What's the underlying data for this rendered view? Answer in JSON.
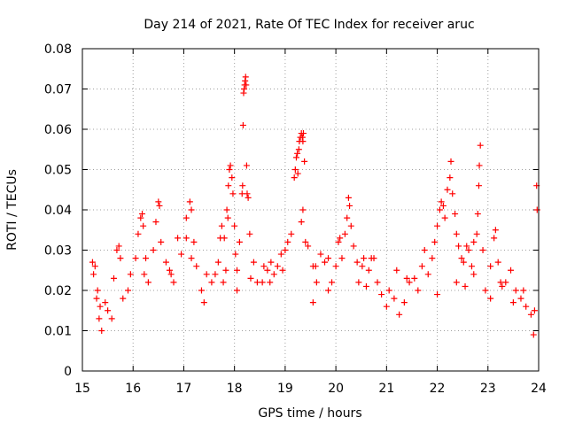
{
  "chart_data": {
    "type": "scatter",
    "title": "Day 214 of 2021, Rate Of TEC Index for receiver aruc",
    "xlabel": "GPS time / hours",
    "ylabel": "ROTI / TECUs",
    "xlim": [
      15,
      24
    ],
    "ylim": [
      0,
      0.08
    ],
    "x_ticks": [
      "15",
      "16",
      "17",
      "18",
      "19",
      "20",
      "21",
      "22",
      "23",
      "24"
    ],
    "y_ticks": [
      "0",
      "0.01",
      "0.02",
      "0.03",
      "0.04",
      "0.05",
      "0.06",
      "0.07",
      "0.08"
    ],
    "grid": true,
    "marker": "+",
    "color": "#ff0000",
    "series": [
      {
        "points": [
          [
            15.2,
            0.027
          ],
          [
            15.22,
            0.024
          ],
          [
            15.25,
            0.026
          ],
          [
            15.28,
            0.018
          ],
          [
            15.3,
            0.02
          ],
          [
            15.33,
            0.013
          ],
          [
            15.35,
            0.016
          ],
          [
            15.38,
            0.01
          ],
          [
            15.45,
            0.017
          ],
          [
            15.5,
            0.015
          ],
          [
            15.58,
            0.013
          ],
          [
            15.62,
            0.023
          ],
          [
            15.68,
            0.03
          ],
          [
            15.72,
            0.031
          ],
          [
            15.75,
            0.028
          ],
          [
            15.8,
            0.018
          ],
          [
            15.9,
            0.02
          ],
          [
            15.95,
            0.024
          ],
          [
            16.05,
            0.028
          ],
          [
            16.1,
            0.034
          ],
          [
            16.15,
            0.038
          ],
          [
            16.18,
            0.039
          ],
          [
            16.2,
            0.036
          ],
          [
            16.25,
            0.028
          ],
          [
            16.3,
            0.022
          ],
          [
            16.4,
            0.03
          ],
          [
            16.45,
            0.037
          ],
          [
            16.5,
            0.042
          ],
          [
            16.52,
            0.041
          ],
          [
            16.55,
            0.032
          ],
          [
            16.65,
            0.027
          ],
          [
            16.72,
            0.025
          ],
          [
            16.8,
            0.022
          ],
          [
            16.88,
            0.033
          ],
          [
            16.95,
            0.029
          ],
          [
            17.05,
            0.038
          ],
          [
            17.12,
            0.042
          ],
          [
            17.15,
            0.04
          ],
          [
            17.2,
            0.032
          ],
          [
            17.25,
            0.026
          ],
          [
            17.35,
            0.02
          ],
          [
            17.45,
            0.024
          ],
          [
            17.55,
            0.022
          ],
          [
            17.62,
            0.024
          ],
          [
            17.68,
            0.027
          ],
          [
            17.72,
            0.033
          ],
          [
            17.75,
            0.036
          ],
          [
            17.8,
            0.033
          ],
          [
            17.85,
            0.04
          ],
          [
            17.87,
            0.038
          ],
          [
            17.88,
            0.046
          ],
          [
            17.9,
            0.05
          ],
          [
            17.92,
            0.051
          ],
          [
            17.95,
            0.048
          ],
          [
            17.97,
            0.044
          ],
          [
            18.0,
            0.036
          ],
          [
            18.02,
            0.029
          ],
          [
            18.05,
            0.025
          ],
          [
            18.1,
            0.032
          ],
          [
            18.15,
            0.044
          ],
          [
            18.16,
            0.046
          ],
          [
            18.17,
            0.061
          ],
          [
            18.18,
            0.069
          ],
          [
            18.19,
            0.07
          ],
          [
            18.2,
            0.071
          ],
          [
            18.21,
            0.072
          ],
          [
            18.22,
            0.073
          ],
          [
            18.23,
            0.071
          ],
          [
            18.24,
            0.051
          ],
          [
            18.25,
            0.044
          ],
          [
            18.27,
            0.043
          ],
          [
            18.3,
            0.034
          ],
          [
            18.38,
            0.027
          ],
          [
            18.45,
            0.022
          ],
          [
            18.55,
            0.022
          ],
          [
            18.65,
            0.025
          ],
          [
            18.72,
            0.027
          ],
          [
            18.78,
            0.024
          ],
          [
            18.85,
            0.026
          ],
          [
            18.92,
            0.029
          ],
          [
            19.0,
            0.03
          ],
          [
            19.05,
            0.032
          ],
          [
            19.12,
            0.034
          ],
          [
            19.18,
            0.048
          ],
          [
            19.2,
            0.05
          ],
          [
            19.22,
            0.053
          ],
          [
            19.24,
            0.054
          ],
          [
            19.25,
            0.049
          ],
          [
            19.27,
            0.055
          ],
          [
            19.28,
            0.057
          ],
          [
            19.3,
            0.058
          ],
          [
            19.32,
            0.059
          ],
          [
            19.34,
            0.058
          ],
          [
            19.35,
            0.057
          ],
          [
            19.36,
            0.059
          ],
          [
            19.38,
            0.052
          ],
          [
            19.32,
            0.037
          ],
          [
            19.35,
            0.04
          ],
          [
            19.4,
            0.032
          ],
          [
            19.45,
            0.031
          ],
          [
            19.55,
            0.026
          ],
          [
            19.62,
            0.022
          ],
          [
            19.7,
            0.029
          ],
          [
            19.78,
            0.027
          ],
          [
            19.85,
            0.028
          ],
          [
            19.92,
            0.022
          ],
          [
            20.0,
            0.026
          ],
          [
            20.05,
            0.032
          ],
          [
            20.08,
            0.033
          ],
          [
            20.12,
            0.028
          ],
          [
            20.18,
            0.034
          ],
          [
            20.22,
            0.038
          ],
          [
            20.25,
            0.043
          ],
          [
            20.27,
            0.041
          ],
          [
            20.3,
            0.036
          ],
          [
            20.35,
            0.031
          ],
          [
            20.42,
            0.027
          ],
          [
            20.52,
            0.026
          ],
          [
            20.6,
            0.021
          ],
          [
            20.7,
            0.028
          ],
          [
            20.75,
            0.028
          ],
          [
            20.82,
            0.022
          ],
          [
            20.9,
            0.019
          ],
          [
            21.0,
            0.016
          ],
          [
            21.05,
            0.02
          ],
          [
            21.15,
            0.018
          ],
          [
            21.25,
            0.014
          ],
          [
            21.35,
            0.017
          ],
          [
            21.45,
            0.022
          ],
          [
            21.55,
            0.023
          ],
          [
            21.62,
            0.02
          ],
          [
            21.7,
            0.026
          ],
          [
            21.75,
            0.03
          ],
          [
            21.82,
            0.024
          ],
          [
            21.9,
            0.028
          ],
          [
            21.95,
            0.032
          ],
          [
            22.0,
            0.036
          ],
          [
            22.05,
            0.04
          ],
          [
            22.08,
            0.042
          ],
          [
            22.12,
            0.041
          ],
          [
            22.15,
            0.038
          ],
          [
            22.2,
            0.045
          ],
          [
            22.25,
            0.048
          ],
          [
            22.27,
            0.052
          ],
          [
            22.3,
            0.044
          ],
          [
            22.35,
            0.039
          ],
          [
            22.38,
            0.034
          ],
          [
            22.42,
            0.031
          ],
          [
            22.48,
            0.028
          ],
          [
            22.52,
            0.027
          ],
          [
            22.58,
            0.031
          ],
          [
            22.62,
            0.03
          ],
          [
            22.68,
            0.026
          ],
          [
            22.72,
            0.032
          ],
          [
            22.78,
            0.034
          ],
          [
            22.8,
            0.039
          ],
          [
            22.82,
            0.046
          ],
          [
            22.83,
            0.051
          ],
          [
            22.85,
            0.056
          ],
          [
            22.9,
            0.03
          ],
          [
            22.95,
            0.02
          ],
          [
            23.05,
            0.026
          ],
          [
            23.12,
            0.033
          ],
          [
            23.15,
            0.035
          ],
          [
            23.2,
            0.027
          ],
          [
            23.28,
            0.021
          ],
          [
            23.35,
            0.022
          ],
          [
            23.45,
            0.025
          ],
          [
            23.55,
            0.02
          ],
          [
            23.65,
            0.018
          ],
          [
            23.75,
            0.016
          ],
          [
            23.85,
            0.014
          ],
          [
            23.92,
            0.015
          ],
          [
            23.96,
            0.046
          ],
          [
            23.97,
            0.04
          ],
          [
            16.22,
            0.024
          ],
          [
            16.75,
            0.024
          ],
          [
            17.05,
            0.033
          ],
          [
            17.15,
            0.028
          ],
          [
            17.4,
            0.017
          ],
          [
            17.78,
            0.022
          ],
          [
            17.83,
            0.025
          ],
          [
            18.05,
            0.02
          ],
          [
            18.32,
            0.023
          ],
          [
            18.58,
            0.026
          ],
          [
            18.7,
            0.022
          ],
          [
            18.95,
            0.025
          ],
          [
            19.6,
            0.026
          ],
          [
            19.55,
            0.017
          ],
          [
            19.85,
            0.02
          ],
          [
            20.45,
            0.022
          ],
          [
            20.55,
            0.028
          ],
          [
            20.65,
            0.025
          ],
          [
            21.2,
            0.025
          ],
          [
            21.4,
            0.023
          ],
          [
            22.0,
            0.019
          ],
          [
            22.38,
            0.022
          ],
          [
            22.55,
            0.021
          ],
          [
            22.72,
            0.024
          ],
          [
            23.05,
            0.018
          ],
          [
            23.25,
            0.022
          ],
          [
            23.5,
            0.017
          ],
          [
            23.7,
            0.02
          ],
          [
            23.9,
            0.009
          ]
        ]
      }
    ]
  }
}
